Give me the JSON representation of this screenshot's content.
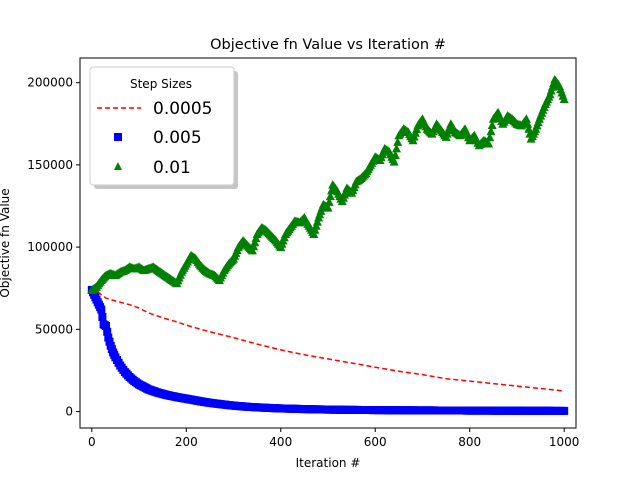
{
  "chart_data": {
    "type": "scatter",
    "title": "Objective fn Value vs Iteration #",
    "xlabel": "Iteration #",
    "ylabel": "Objective fn Value",
    "xlim": [
      -25,
      1025
    ],
    "ylim": [
      -10000,
      215000
    ],
    "xticks": [
      0,
      200,
      400,
      600,
      800,
      1000
    ],
    "yticks": [
      0,
      50000,
      100000,
      150000,
      200000
    ],
    "legend": {
      "title": "Step Sizes",
      "position": "top-left"
    },
    "series": [
      {
        "name": "0.0005",
        "style": "dashed-line",
        "color": "#ff0000",
        "x": [
          0,
          10,
          20,
          30,
          40,
          60,
          80,
          100,
          120,
          150,
          180,
          200,
          250,
          300,
          350,
          400,
          450,
          500,
          550,
          600,
          650,
          700,
          750,
          800,
          850,
          900,
          950,
          1000
        ],
        "y": [
          76000,
          73500,
          71000,
          69000,
          68000,
          66500,
          65000,
          63000,
          60000,
          57000,
          54500,
          52500,
          48500,
          45000,
          41000,
          37500,
          34500,
          32000,
          29500,
          27000,
          24500,
          22500,
          20000,
          18500,
          17000,
          15500,
          14000,
          12500
        ]
      },
      {
        "name": "0.005",
        "style": "square-markers",
        "color": "#0000ff",
        "x": [
          0,
          5,
          10,
          15,
          20,
          25,
          30,
          35,
          40,
          45,
          50,
          60,
          70,
          80,
          90,
          100,
          120,
          140,
          160,
          180,
          200,
          225,
          250,
          275,
          300,
          330,
          360,
          400,
          450,
          500,
          550,
          600,
          650,
          700,
          750,
          800,
          850,
          900,
          950,
          1000
        ],
        "y": [
          74000,
          71000,
          68000,
          65000,
          62000,
          53000,
          52000,
          45000,
          40000,
          36000,
          33000,
          28000,
          24000,
          21000,
          18500,
          16500,
          13500,
          11500,
          10000,
          8800,
          7800,
          6500,
          5300,
          4400,
          3600,
          2900,
          2400,
          1900,
          1500,
          1200,
          1000,
          900,
          800,
          700,
          650,
          600,
          550,
          500,
          450,
          400
        ]
      },
      {
        "name": "0.01",
        "style": "triangle-markers",
        "color": "#008000",
        "x": [
          0,
          10,
          20,
          30,
          40,
          50,
          60,
          70,
          80,
          90,
          100,
          110,
          120,
          130,
          140,
          150,
          160,
          170,
          180,
          190,
          200,
          210,
          220,
          230,
          240,
          250,
          260,
          270,
          280,
          290,
          300,
          310,
          320,
          330,
          340,
          350,
          360,
          370,
          380,
          390,
          400,
          410,
          420,
          430,
          440,
          450,
          460,
          470,
          480,
          490,
          500,
          510,
          520,
          530,
          540,
          550,
          560,
          570,
          580,
          590,
          600,
          610,
          620,
          630,
          640,
          650,
          660,
          670,
          680,
          690,
          700,
          710,
          720,
          730,
          740,
          750,
          760,
          770,
          780,
          790,
          800,
          810,
          820,
          830,
          840,
          850,
          860,
          870,
          880,
          890,
          900,
          910,
          920,
          930,
          940,
          950,
          960,
          970,
          980,
          990,
          1000
        ],
        "y": [
          74000,
          76000,
          80000,
          83000,
          84000,
          83000,
          85000,
          86000,
          88000,
          87000,
          88000,
          86000,
          87000,
          88000,
          86000,
          84000,
          82000,
          80000,
          78000,
          85000,
          90000,
          95000,
          93000,
          89000,
          86000,
          84000,
          83000,
          80000,
          86000,
          90000,
          93000,
          100000,
          104000,
          101000,
          98000,
          108000,
          112000,
          110000,
          107000,
          104000,
          100000,
          108000,
          112000,
          116000,
          115000,
          118000,
          113000,
          108000,
          118000,
          126000,
          124000,
          138000,
          134000,
          128000,
          136000,
          133000,
          140000,
          142000,
          145000,
          150000,
          155000,
          153000,
          160000,
          158000,
          152000,
          168000,
          172000,
          170000,
          165000,
          174000,
          178000,
          172000,
          169000,
          175000,
          171000,
          167000,
          175000,
          170000,
          168000,
          172000,
          165000,
          168000,
          162000,
          165000,
          163000,
          178000,
          182000,
          175000,
          180000,
          178000,
          175000,
          174000,
          178000,
          166000,
          172000,
          180000,
          187000,
          193000,
          202000,
          198000,
          190000
        ]
      }
    ]
  }
}
